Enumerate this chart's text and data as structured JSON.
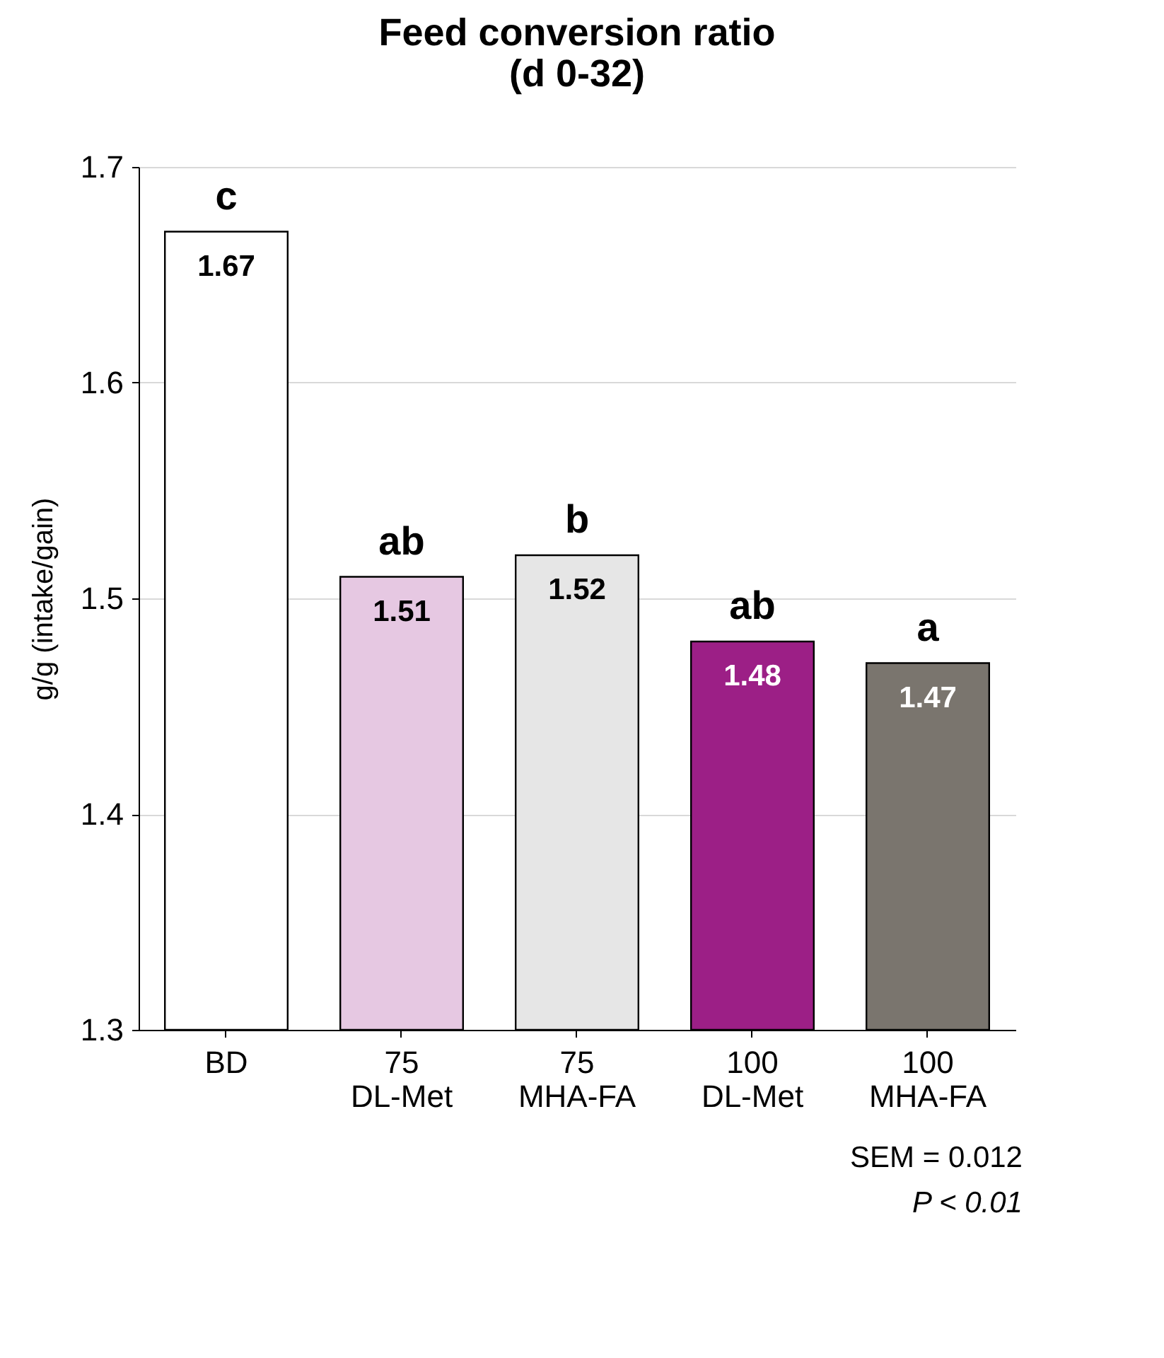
{
  "chart_data": {
    "type": "bar",
    "title": "Feed conversion ratio\n(d 0-32)",
    "ylabel": "g/g (intake/gain)",
    "categories": [
      "BD",
      "75\nDL-Met",
      "75\nMHA-FA",
      "100\nDL-Met",
      "100\nMHA-FA"
    ],
    "values": [
      1.67,
      1.51,
      1.52,
      1.48,
      1.47
    ],
    "colors": [
      "#ffffff",
      "#e6c8e2",
      "#e6e6e6",
      "#9c1f86",
      "#7a756e"
    ],
    "data_labels": true,
    "ylim": [
      1.3,
      1.7
    ],
    "yticks": [
      1.3,
      1.4,
      1.5,
      1.6,
      1.7
    ],
    "grid": "y",
    "legend": false,
    "annotations": [
      "c",
      "ab",
      "b",
      "ab",
      "a",
      "SEM = 0.012",
      "P < 0.01"
    ]
  }
}
